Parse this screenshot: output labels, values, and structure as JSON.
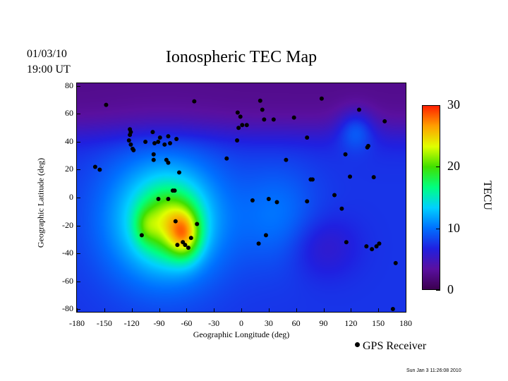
{
  "header": {
    "date": "01/03/10",
    "time": "19:00 UT",
    "title": "Ionospheric TEC Map"
  },
  "legend": {
    "marker_label": "GPS Receiver"
  },
  "footer": {
    "timestamp": "Sun Jan  3 11:26:08 2010"
  },
  "chart_data": {
    "type": "heatmap",
    "title": "Ionospheric TEC Map",
    "xlabel": "Geographic Longitude (deg)",
    "ylabel": "Geographic Latitude (deg)",
    "xlim": [
      -180,
      180
    ],
    "ylim": [
      -82,
      82
    ],
    "xticks": [
      "-180",
      "-150",
      "-120",
      "-90",
      "-60",
      "-30",
      "0",
      "30",
      "60",
      "90",
      "120",
      "150",
      "180"
    ],
    "yticks": [
      "80",
      "60",
      "40",
      "20",
      "0",
      "-20",
      "-40",
      "-60",
      "-80"
    ],
    "colorbar": {
      "label": "TECU",
      "range": [
        0,
        30
      ],
      "ticks": [
        "0",
        "10",
        "20",
        "30"
      ],
      "colors": [
        "#3c0050",
        "#5a10a0",
        "#2020e0",
        "#0070ff",
        "#00d0ff",
        "#00ff80",
        "#40e000",
        "#e0ff00",
        "#ffa000",
        "#ff2000"
      ]
    },
    "tec_peak": {
      "lon": -62,
      "lat": -28,
      "value": 30
    },
    "receivers": [
      [
        -148,
        66.5
      ],
      [
        -51.5,
        69
      ],
      [
        -160,
        22
      ],
      [
        -155,
        20
      ],
      [
        -122,
        49
      ],
      [
        -121,
        47
      ],
      [
        -122,
        45
      ],
      [
        -123,
        41
      ],
      [
        -121,
        38
      ],
      [
        -119,
        35
      ],
      [
        -118,
        34
      ],
      [
        -105,
        40
      ],
      [
        -97,
        47
      ],
      [
        -95,
        39
      ],
      [
        -91,
        40
      ],
      [
        -89,
        43
      ],
      [
        -84,
        38
      ],
      [
        -80,
        44
      ],
      [
        -78,
        39
      ],
      [
        -71,
        42
      ],
      [
        -96,
        31
      ],
      [
        -96,
        27
      ],
      [
        -82,
        27
      ],
      [
        -80,
        25
      ],
      [
        -68,
        18
      ],
      [
        -90.8,
        -1
      ],
      [
        -80,
        -1
      ],
      [
        -75,
        5
      ],
      [
        -73,
        5
      ],
      [
        -72,
        -17
      ],
      [
        -70,
        -34
      ],
      [
        -64,
        -32
      ],
      [
        -61.5,
        -34
      ],
      [
        -58,
        -36
      ],
      [
        -55,
        -29
      ],
      [
        -48.5,
        -19
      ],
      [
        -109,
        -27
      ],
      [
        -4,
        61
      ],
      [
        -1,
        58
      ],
      [
        -3,
        50
      ],
      [
        1,
        52
      ],
      [
        6,
        52
      ],
      [
        20.7,
        69.5
      ],
      [
        23,
        63
      ],
      [
        25,
        56
      ],
      [
        35.4,
        56
      ],
      [
        57.7,
        57.4
      ],
      [
        -4.6,
        41
      ],
      [
        -16,
        28
      ],
      [
        12.3,
        -2
      ],
      [
        30,
        -1
      ],
      [
        39,
        -3.3
      ],
      [
        27,
        -27
      ],
      [
        19,
        -33
      ],
      [
        49,
        27
      ],
      [
        72,
        -2.7
      ],
      [
        72,
        43
      ],
      [
        76,
        13
      ],
      [
        78,
        13
      ],
      [
        88,
        71
      ],
      [
        102,
        1.8
      ],
      [
        110,
        -8
      ],
      [
        114,
        31
      ],
      [
        119,
        15
      ],
      [
        129,
        63
      ],
      [
        138,
        36
      ],
      [
        139,
        37
      ],
      [
        145,
        14.6
      ],
      [
        157,
        54.7
      ],
      [
        115,
        -32
      ],
      [
        137,
        -35
      ],
      [
        143,
        -37
      ],
      [
        148,
        -35
      ],
      [
        151,
        -33
      ],
      [
        169,
        -47
      ],
      [
        166,
        -80
      ]
    ]
  }
}
